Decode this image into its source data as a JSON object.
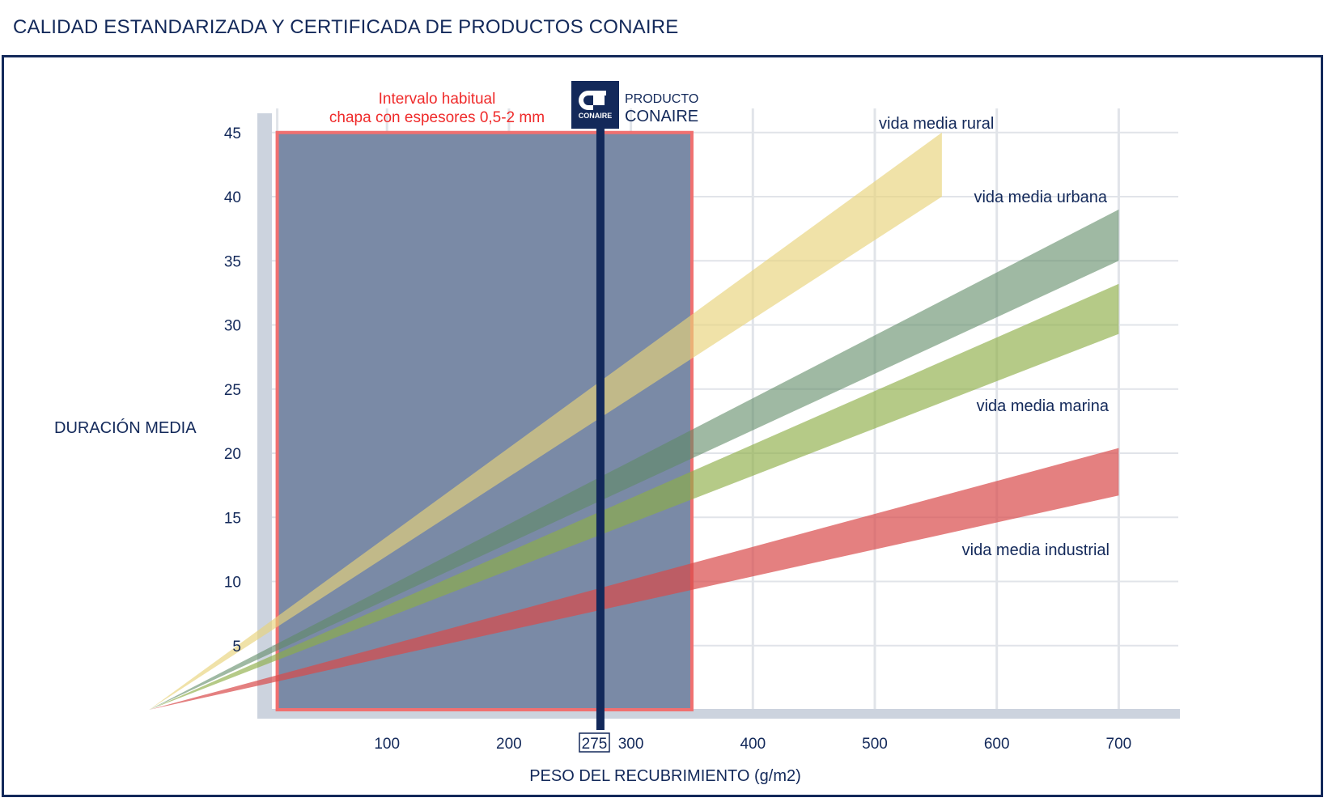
{
  "page": {
    "title": "CALIDAD ESTANDARIZADA Y CERTIFICADA DE PRODUCTOS CONAIRE"
  },
  "highlight": {
    "label_line1": "Intervalo habitual",
    "label_line2": "chapa con espesores 0,5-2 mm",
    "x_range": [
      10,
      350
    ],
    "fill": "#7a8aa6",
    "border": "#f07070"
  },
  "marker": {
    "x": 275,
    "label": "275",
    "logo_text": "CONAIRE",
    "caption_line1": "PRODUCTO",
    "caption_line2": "CONAIRE",
    "color": "#13295a"
  },
  "chart_data": {
    "type": "area",
    "xlabel": "PESO DEL RECUBRIMIENTO (g/m2)",
    "ylabel": "DURACIÓN MEDIA",
    "xlim": [
      0,
      760
    ],
    "ylim": [
      0,
      45
    ],
    "x_ticks": [
      100,
      200,
      300,
      400,
      500,
      600,
      700
    ],
    "y_ticks": [
      5,
      10,
      15,
      20,
      25,
      30,
      35,
      40,
      45
    ],
    "grid": true,
    "origin_x": -95,
    "series": [
      {
        "name": "vida media rural",
        "color": "#e8d27a",
        "opacity": 0.65,
        "upper_at_origin": 0,
        "lower_at_origin": 0,
        "upper": [
          [
            555,
            45
          ]
        ],
        "lower": [
          [
            555,
            40
          ]
        ]
      },
      {
        "name": "vida media urbana",
        "color": "#5f8a66",
        "opacity": 0.6,
        "upper": [
          [
            700,
            39
          ]
        ],
        "lower": [
          [
            700,
            35
          ]
        ]
      },
      {
        "name": "vida media marina",
        "color": "#8ead46",
        "opacity": 0.65,
        "upper": [
          [
            700,
            33.2
          ]
        ],
        "lower": [
          [
            700,
            29.3
          ]
        ]
      },
      {
        "name": "vida media industrial",
        "color": "#d84a4a",
        "opacity": 0.7,
        "upper": [
          [
            700,
            20.4
          ]
        ],
        "lower": [
          [
            700,
            16.7
          ]
        ]
      }
    ]
  }
}
